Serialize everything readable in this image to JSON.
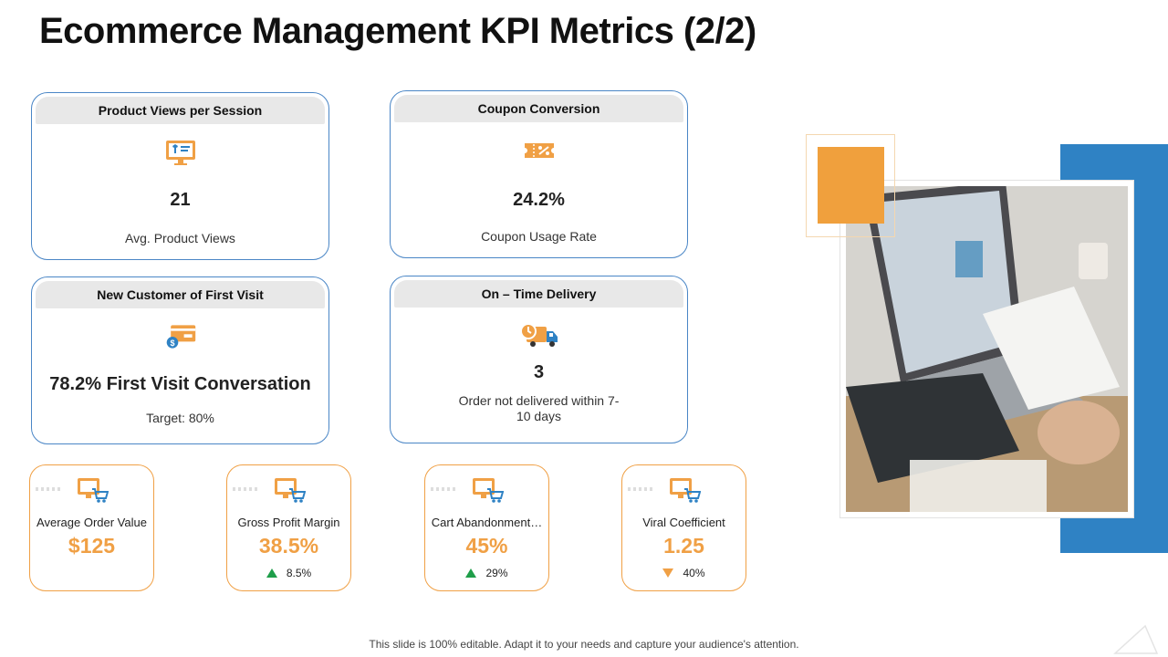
{
  "title": "Ecommerce Management KPI Metrics (2/2)",
  "cards": [
    {
      "header": "Product Views per Session",
      "value": "21",
      "sub": "Avg. Product Views",
      "icon": "monitor-shirt-icon"
    },
    {
      "header": "Coupon Conversion",
      "value": "24.2%",
      "sub": "Coupon Usage Rate",
      "icon": "coupon-icon"
    },
    {
      "header": "New Customer of First Visit",
      "value": "78.2%  First Visit Conversation",
      "sub": "Target: 80%",
      "icon": "card-dollar-icon"
    },
    {
      "header": "On – Time Delivery",
      "value": "3",
      "sub": "Order not delivered within 7-10 days",
      "icon": "delivery-truck-icon"
    }
  ],
  "minis": [
    {
      "label": "Average  Order Value",
      "value": "$125",
      "trend": "",
      "direction": "none"
    },
    {
      "label": "Gross Profit Margin",
      "value": "38.5%",
      "trend": "8.5%",
      "direction": "up"
    },
    {
      "label": "Cart Abandonment…",
      "value": "45%",
      "trend": "29%",
      "direction": "up"
    },
    {
      "label": "Viral Coefficient",
      "value": "1.25",
      "trend": "40%",
      "direction": "down"
    }
  ],
  "footer": "This slide is 100% editable. Adapt it to your needs and capture your audience's attention.",
  "colors": {
    "accent_orange": "#f0a045",
    "accent_blue": "#2f82c4",
    "card_border": "#4a86c6",
    "trend_up": "#1f9e4a"
  }
}
